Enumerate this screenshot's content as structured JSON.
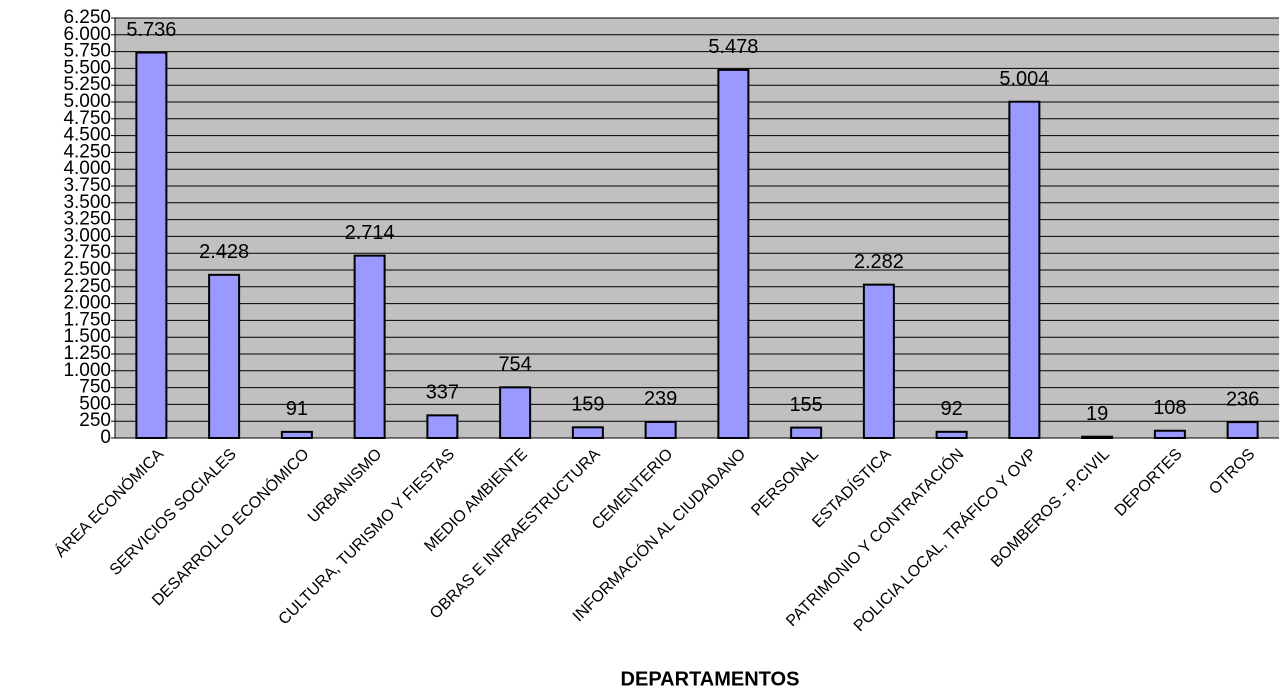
{
  "chart_data": {
    "type": "bar",
    "xlabel": "DEPARTAMENTOS",
    "categories": [
      "ÁREA ECONÓMICA",
      "SERVICIOS SOCIALES",
      "DESARROLLO ECONÓMICO",
      "URBANISMO",
      "CULTURA, TURISMO Y FIESTAS",
      "MEDIO AMBIENTE",
      "OBRAS E INFRAESTRUCTURA",
      "CEMENTERIO",
      "INFORMACIÓN AL CIUDADANO",
      "PERSONAL",
      "ESTADÍSTICA",
      "PATRIMONIO Y CONTRATACIÓN",
      "POLICIA LOCAL, TRÁFICO Y OVP",
      "BOMBEROS - P.CIVIL",
      "DEPORTES",
      "OTROS"
    ],
    "values": [
      5736,
      2428,
      91,
      2714,
      337,
      754,
      159,
      239,
      5478,
      155,
      2282,
      92,
      5004,
      19,
      108,
      236
    ],
    "value_labels": [
      "5.736",
      "2.428",
      "91",
      "2.714",
      "337",
      "754",
      "159",
      "239",
      "5.478",
      "155",
      "2.282",
      "92",
      "5.004",
      "19",
      "108",
      "236"
    ],
    "color": "#9999ff",
    "ylim": [
      0,
      6250
    ],
    "yticks": [
      0,
      250,
      500,
      750,
      {
        "value": 1000,
        "label": "1.000"
      },
      {
        "value": 1250,
        "label": "1.250"
      },
      {
        "value": 1500,
        "label": "1.500"
      },
      {
        "value": 1750,
        "label": "1.750"
      },
      {
        "value": 2000,
        "label": "2.000"
      },
      {
        "value": 2250,
        "label": "2.250"
      },
      {
        "value": 2500,
        "label": "2.500"
      },
      {
        "value": 2750,
        "label": "2.750"
      },
      {
        "value": 3000,
        "label": "3.000"
      },
      {
        "value": 3250,
        "label": "3.250"
      },
      {
        "value": 3500,
        "label": "3.500"
      },
      {
        "value": 3750,
        "label": "3.750"
      },
      {
        "value": 4000,
        "label": "4.000"
      },
      {
        "value": 4250,
        "label": "4.250"
      },
      {
        "value": 4500,
        "label": "4.500"
      },
      {
        "value": 4750,
        "label": "4.750"
      },
      {
        "value": 5000,
        "label": "5.000"
      },
      {
        "value": 5250,
        "label": "5.250"
      },
      {
        "value": 5500,
        "label": "5.500"
      },
      {
        "value": 5750,
        "label": "5.750"
      },
      {
        "value": 6000,
        "label": "6.000"
      },
      {
        "value": 6250,
        "label": "6.250"
      }
    ],
    "grid": true
  }
}
